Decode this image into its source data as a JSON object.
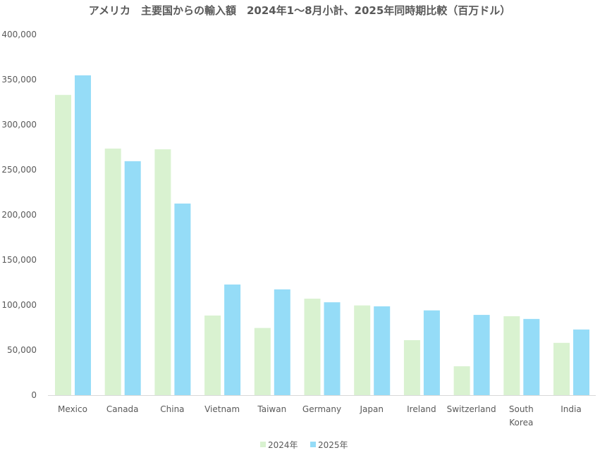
{
  "chart_data": {
    "type": "bar",
    "title": "アメリカ　主要国からの輸入額　2024年1～8月小計、2025年同時期比較（百万ドル）",
    "xlabel": "",
    "ylabel": "",
    "ylim": [
      0,
      400000
    ],
    "yticks": [
      0,
      50000,
      100000,
      150000,
      200000,
      250000,
      300000,
      350000,
      400000
    ],
    "ytick_labels": [
      "0",
      "50,000",
      "100,000",
      "150,000",
      "200,000",
      "250,000",
      "300,000",
      "350,000",
      "400,000"
    ],
    "grid": false,
    "legend_position": "bottom",
    "categories": [
      [
        "Mexico"
      ],
      [
        "Canada"
      ],
      [
        "China"
      ],
      [
        "Vietnam"
      ],
      [
        "Taiwan"
      ],
      [
        "Germany"
      ],
      [
        "Japan"
      ],
      [
        "Ireland"
      ],
      [
        "Switzerland"
      ],
      [
        "South",
        "Korea"
      ],
      [
        "India"
      ]
    ],
    "series": [
      {
        "name": "2024年",
        "color": "#d9f2d0",
        "values": [
          333000,
          273500,
          272700,
          88300,
          74500,
          107000,
          99500,
          61000,
          32000,
          87500,
          58000
        ]
      },
      {
        "name": "2025年",
        "color": "#95dcf7",
        "values": [
          354700,
          259500,
          212500,
          122700,
          117300,
          103000,
          98500,
          94000,
          89000,
          84500,
          72800
        ]
      }
    ]
  }
}
